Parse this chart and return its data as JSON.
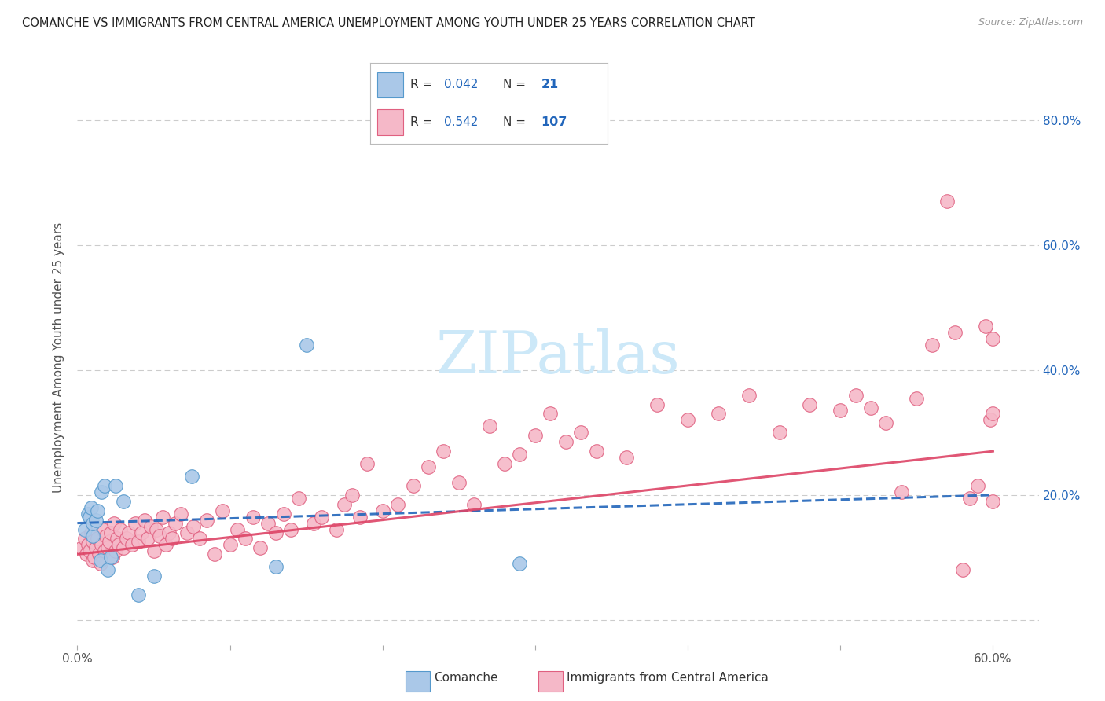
{
  "title": "COMANCHE VS IMMIGRANTS FROM CENTRAL AMERICA UNEMPLOYMENT AMONG YOUTH UNDER 25 YEARS CORRELATION CHART",
  "source": "Source: ZipAtlas.com",
  "ylabel": "Unemployment Among Youth under 25 years",
  "xlim": [
    0.0,
    0.63
  ],
  "ylim": [
    -0.04,
    0.88
  ],
  "ytick_positions": [
    0.0,
    0.2,
    0.4,
    0.6,
    0.8
  ],
  "ytick_labels_right": [
    "",
    "20.0%",
    "40.0%",
    "60.0%",
    "80.0%"
  ],
  "xtick_positions": [
    0.0,
    0.1,
    0.2,
    0.3,
    0.4,
    0.5,
    0.6
  ],
  "xtick_labels": [
    "0.0%",
    "",
    "",
    "",
    "",
    "",
    "60.0%"
  ],
  "comanche_R": "0.042",
  "comanche_N": "21",
  "immigrants_R": "0.542",
  "immigrants_N": "107",
  "comanche_dot_color": "#aac8e8",
  "comanche_edge_color": "#5599cc",
  "immigrants_dot_color": "#f5b8c8",
  "immigrants_edge_color": "#e06080",
  "comanche_line_color": "#2266bb",
  "immigrants_line_color": "#dd4466",
  "right_tick_color": "#2266bb",
  "watermark_color": "#cce8f8",
  "legend_R_N_color": "#2266bb",
  "comanche_scatter_x": [
    0.005,
    0.007,
    0.008,
    0.009,
    0.01,
    0.01,
    0.012,
    0.013,
    0.015,
    0.016,
    0.018,
    0.02,
    0.022,
    0.025,
    0.03,
    0.04,
    0.05,
    0.075,
    0.13,
    0.15,
    0.29
  ],
  "comanche_scatter_y": [
    0.145,
    0.17,
    0.165,
    0.18,
    0.135,
    0.155,
    0.16,
    0.175,
    0.095,
    0.205,
    0.215,
    0.08,
    0.1,
    0.215,
    0.19,
    0.04,
    0.07,
    0.23,
    0.085,
    0.44,
    0.09
  ],
  "immigrants_scatter_x": [
    0.003,
    0.005,
    0.006,
    0.007,
    0.008,
    0.009,
    0.01,
    0.01,
    0.011,
    0.012,
    0.013,
    0.014,
    0.015,
    0.016,
    0.017,
    0.018,
    0.019,
    0.02,
    0.021,
    0.022,
    0.023,
    0.024,
    0.025,
    0.026,
    0.027,
    0.028,
    0.03,
    0.032,
    0.034,
    0.036,
    0.038,
    0.04,
    0.042,
    0.044,
    0.046,
    0.048,
    0.05,
    0.052,
    0.054,
    0.056,
    0.058,
    0.06,
    0.062,
    0.064,
    0.068,
    0.072,
    0.076,
    0.08,
    0.085,
    0.09,
    0.095,
    0.1,
    0.105,
    0.11,
    0.115,
    0.12,
    0.125,
    0.13,
    0.135,
    0.14,
    0.145,
    0.155,
    0.16,
    0.17,
    0.175,
    0.18,
    0.185,
    0.19,
    0.2,
    0.21,
    0.22,
    0.23,
    0.24,
    0.25,
    0.26,
    0.27,
    0.28,
    0.29,
    0.3,
    0.31,
    0.32,
    0.33,
    0.34,
    0.36,
    0.38,
    0.4,
    0.42,
    0.44,
    0.46,
    0.48,
    0.5,
    0.51,
    0.52,
    0.53,
    0.54,
    0.55,
    0.56,
    0.57,
    0.575,
    0.58,
    0.585,
    0.59,
    0.595,
    0.598,
    0.6,
    0.6,
    0.6
  ],
  "immigrants_scatter_y": [
    0.115,
    0.13,
    0.105,
    0.12,
    0.11,
    0.14,
    0.095,
    0.125,
    0.1,
    0.115,
    0.13,
    0.105,
    0.09,
    0.12,
    0.145,
    0.11,
    0.135,
    0.115,
    0.125,
    0.14,
    0.1,
    0.155,
    0.11,
    0.13,
    0.12,
    0.145,
    0.115,
    0.13,
    0.14,
    0.12,
    0.155,
    0.125,
    0.14,
    0.16,
    0.13,
    0.15,
    0.11,
    0.145,
    0.135,
    0.165,
    0.12,
    0.14,
    0.13,
    0.155,
    0.17,
    0.14,
    0.15,
    0.13,
    0.16,
    0.105,
    0.175,
    0.12,
    0.145,
    0.13,
    0.165,
    0.115,
    0.155,
    0.14,
    0.17,
    0.145,
    0.195,
    0.155,
    0.165,
    0.145,
    0.185,
    0.2,
    0.165,
    0.25,
    0.175,
    0.185,
    0.215,
    0.245,
    0.27,
    0.22,
    0.185,
    0.31,
    0.25,
    0.265,
    0.295,
    0.33,
    0.285,
    0.3,
    0.27,
    0.26,
    0.345,
    0.32,
    0.33,
    0.36,
    0.3,
    0.345,
    0.335,
    0.36,
    0.34,
    0.315,
    0.205,
    0.355,
    0.44,
    0.67,
    0.46,
    0.08,
    0.195,
    0.215,
    0.47,
    0.32,
    0.45,
    0.19,
    0.33
  ]
}
